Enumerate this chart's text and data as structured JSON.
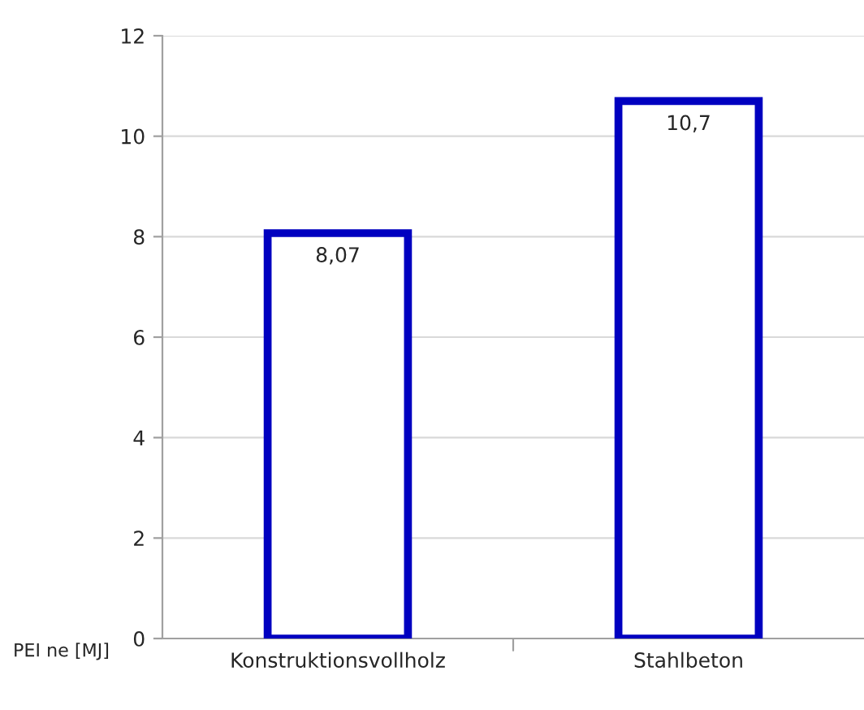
{
  "chart_data": {
    "type": "bar",
    "ylabel": "PEI ne [MJ]",
    "categories": [
      "Konstruktionsvollholz",
      "Stahlbeton"
    ],
    "series": [
      {
        "color": "#0000c0",
        "values": [
          8.07,
          10.7
        ],
        "value_labels": [
          "8,07",
          "10,7"
        ]
      }
    ],
    "ylim": [
      0,
      12
    ],
    "yticks": [
      0,
      2,
      4,
      6,
      8,
      10,
      12
    ],
    "grid": "y",
    "legend": false
  }
}
